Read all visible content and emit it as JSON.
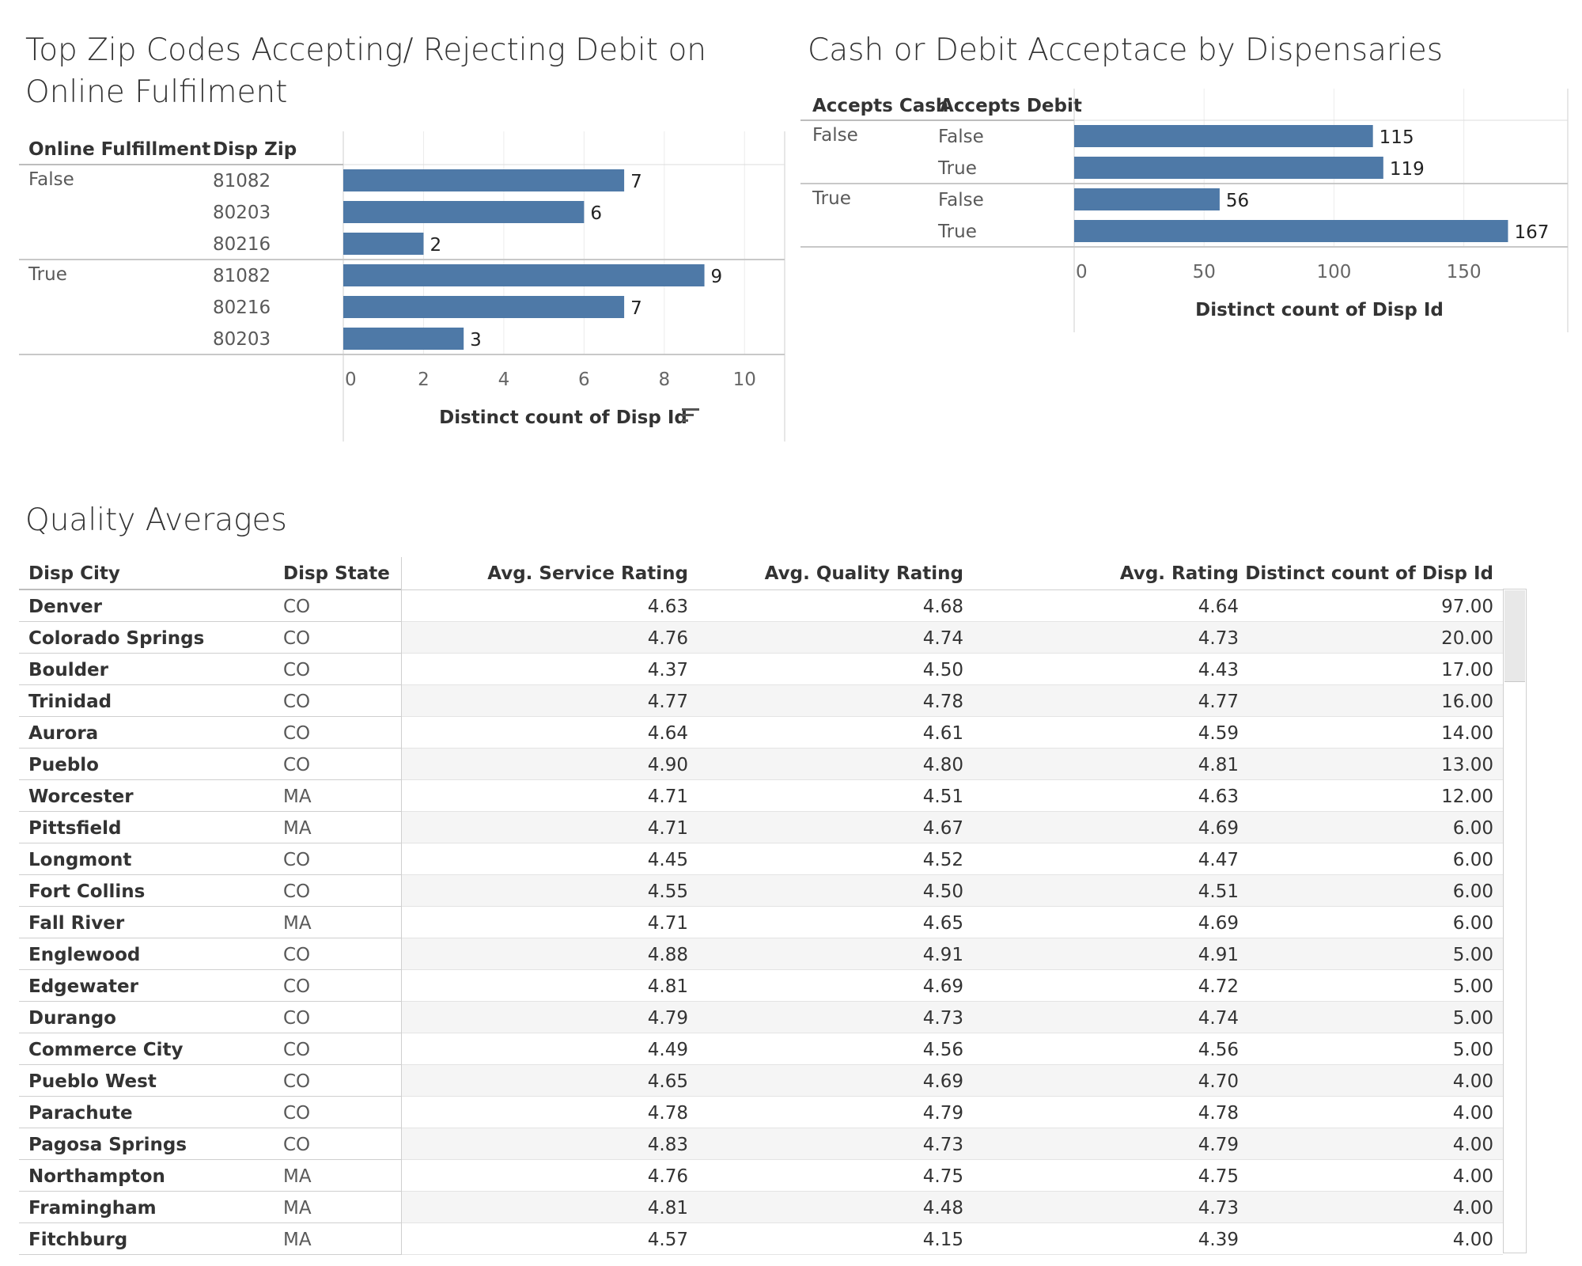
{
  "chart_data": [
    {
      "type": "bar",
      "title": "Top Zip Codes Accepting/ Rejecting Debit on Online Fulfilment",
      "row_headers": [
        "Online Fulfillment",
        "Disp Zip"
      ],
      "groups": [
        {
          "label": "False",
          "rows": [
            {
              "zip": "81082",
              "value": 7
            },
            {
              "zip": "80203",
              "value": 6
            },
            {
              "zip": "80216",
              "value": 2
            }
          ]
        },
        {
          "label": "True",
          "rows": [
            {
              "zip": "81082",
              "value": 9
            },
            {
              "zip": "80216",
              "value": 7
            },
            {
              "zip": "80203",
              "value": 3
            }
          ]
        }
      ],
      "xlabel": "Distinct count of Disp Id",
      "xlim": [
        0,
        11
      ],
      "xticks": [
        0,
        2,
        4,
        6,
        8,
        10
      ],
      "bar_color": "#4e79a7",
      "sort_icon": "sort-descending-icon"
    },
    {
      "type": "bar",
      "title": "Cash or Debit Acceptace by Dispensaries",
      "row_headers": [
        "Accepts Cash",
        "Accepts Debit"
      ],
      "groups": [
        {
          "label": "False",
          "rows": [
            {
              "debit": "False",
              "value": 115
            },
            {
              "debit": "True",
              "value": 119
            }
          ]
        },
        {
          "label": "True",
          "rows": [
            {
              "debit": "False",
              "value": 56
            },
            {
              "debit": "True",
              "value": 167
            }
          ]
        }
      ],
      "xlabel": "Distinct count of Disp Id",
      "xlim": [
        0,
        190
      ],
      "xticks": [
        0,
        50,
        100,
        150
      ],
      "bar_color": "#4e79a7"
    },
    {
      "type": "table",
      "title": "Quality Averages",
      "columns": [
        "Disp City",
        "Disp State",
        "Avg. Service Rating",
        "Avg. Quality Rating",
        "Avg. Rating",
        "Distinct count of Disp Id"
      ],
      "rows": [
        [
          "Denver",
          "CO",
          "4.63",
          "4.68",
          "4.64",
          "97.00"
        ],
        [
          "Colorado Springs",
          "CO",
          "4.76",
          "4.74",
          "4.73",
          "20.00"
        ],
        [
          "Boulder",
          "CO",
          "4.37",
          "4.50",
          "4.43",
          "17.00"
        ],
        [
          "Trinidad",
          "CO",
          "4.77",
          "4.78",
          "4.77",
          "16.00"
        ],
        [
          "Aurora",
          "CO",
          "4.64",
          "4.61",
          "4.59",
          "14.00"
        ],
        [
          "Pueblo",
          "CO",
          "4.90",
          "4.80",
          "4.81",
          "13.00"
        ],
        [
          "Worcester",
          "MA",
          "4.71",
          "4.51",
          "4.63",
          "12.00"
        ],
        [
          "Pittsfield",
          "MA",
          "4.71",
          "4.67",
          "4.69",
          "6.00"
        ],
        [
          "Longmont",
          "CO",
          "4.45",
          "4.52",
          "4.47",
          "6.00"
        ],
        [
          "Fort Collins",
          "CO",
          "4.55",
          "4.50",
          "4.51",
          "6.00"
        ],
        [
          "Fall River",
          "MA",
          "4.71",
          "4.65",
          "4.69",
          "6.00"
        ],
        [
          "Englewood",
          "CO",
          "4.88",
          "4.91",
          "4.91",
          "5.00"
        ],
        [
          "Edgewater",
          "CO",
          "4.81",
          "4.69",
          "4.72",
          "5.00"
        ],
        [
          "Durango",
          "CO",
          "4.79",
          "4.73",
          "4.74",
          "5.00"
        ],
        [
          "Commerce City",
          "CO",
          "4.49",
          "4.56",
          "4.56",
          "5.00"
        ],
        [
          "Pueblo West",
          "CO",
          "4.65",
          "4.69",
          "4.70",
          "4.00"
        ],
        [
          "Parachute",
          "CO",
          "4.78",
          "4.79",
          "4.78",
          "4.00"
        ],
        [
          "Pagosa Springs",
          "CO",
          "4.83",
          "4.73",
          "4.79",
          "4.00"
        ],
        [
          "Northampton",
          "MA",
          "4.76",
          "4.75",
          "4.75",
          "4.00"
        ],
        [
          "Framingham",
          "MA",
          "4.81",
          "4.48",
          "4.73",
          "4.00"
        ],
        [
          "Fitchburg",
          "MA",
          "4.57",
          "4.15",
          "4.39",
          "4.00"
        ]
      ]
    }
  ]
}
